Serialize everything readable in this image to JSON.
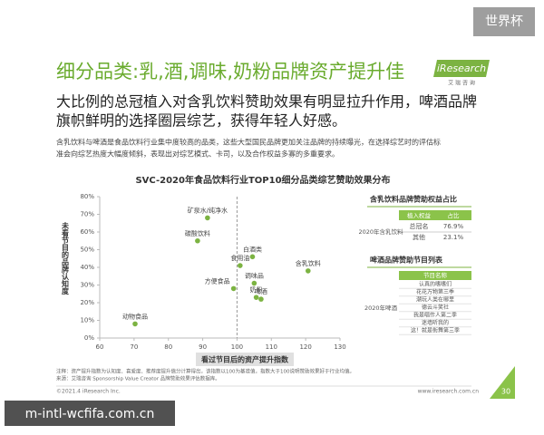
{
  "header": {
    "badge": "世界杯",
    "title": "细分品类:乳,酒,调味,奶粉品牌资产提升佳",
    "logo": "iResearch",
    "logo_sub": "艾 瑞 咨 询",
    "subtitle": [
      "大比例的总冠植入对含乳饮料赞助效果有明显拉升作用，啤酒品牌",
      "旗帜鲜明的选择圈层综艺，获得年轻人好感。"
    ],
    "paragraph": [
      "含乳饮料与啤酒是食品饮料行业集中度较高的品类，这些大型国民品牌更加关注品牌的持续曝光，在选择综艺时的评估标",
      "准会向综艺热度大幅度倾斜，表现出对综艺模式、卡司，以及合作权益多寡的多重要求。"
    ]
  },
  "chart_data": {
    "type": "scatter",
    "title": "SVC-2020年食品饮料行业TOP10细分品类综艺赞助效果分布",
    "x_label": "看过节目后的资产提升指数",
    "y_label": "未看节目的品牌认知度",
    "labels": [
      "矿泉水/纯净水",
      "碳酸饮料",
      "白酒类",
      "食用油",
      "调味品",
      "方便食品",
      "奶粉",
      "啤酒",
      "含乳饮料",
      "动物食品"
    ],
    "x": [
      91.4,
      88.5,
      104.5,
      100.9,
      105,
      99,
      105.6,
      107,
      120.7,
      70.3
    ],
    "values": [
      68,
      55,
      46,
      41,
      31,
      28,
      23,
      22,
      38,
      8
    ],
    "color": "#7cb342",
    "xlim": [
      60,
      130
    ],
    "xticks": [
      60,
      70,
      80,
      90,
      100,
      110,
      120,
      130
    ],
    "ylim": [
      0,
      80
    ],
    "yticks": [
      {
        "value": 0,
        "label": "0%"
      },
      {
        "value": 10,
        "label": "10%"
      },
      {
        "value": 20,
        "label": "20%"
      },
      {
        "value": 30,
        "label": "30%"
      },
      {
        "value": 40,
        "label": "40%"
      },
      {
        "value": 50,
        "label": "50%"
      },
      {
        "value": 60,
        "label": "60%"
      },
      {
        "value": 70,
        "label": "70%"
      },
      {
        "value": 80,
        "label": "80%"
      }
    ],
    "ref_x": 100,
    "grid": false
  },
  "table1": {
    "title": "含乳饮料品牌赞助权益占比",
    "side": "2020年含乳饮料",
    "columns": [
      "植入权益",
      "占比"
    ],
    "rows": [
      [
        "总冠名",
        "76.9%"
      ],
      [
        "其他",
        "23.1%"
      ]
    ]
  },
  "table2": {
    "title": "啤酒品牌赞助节目列表",
    "side": "2020年啤酒",
    "columns": [
      "节目名称"
    ],
    "rows": [
      "认真的嗜嗜们",
      "花花万物第三季",
      "潮玩人类在哪里",
      "德云斗笑社",
      "我是唱作人第二季",
      "迷墙听我的",
      "这！就是街舞第三季"
    ]
  },
  "footer": {
    "notes": [
      "注释：资产提升指数为认知度、喜爱度、推荐度提升值分计算得出，该指数以100为基准值，指数大于100说明赞助效果好于行业均值。",
      "来源：艾瑞咨询 Sponsorship Value Creator 品牌赞助效果评估数据库。"
    ],
    "copyright": "©2021.4 iResearch Inc.",
    "url": "www.iresearch.com.cn",
    "page": "30",
    "watermark": "m-intl-wcfifa.com.cn"
  }
}
